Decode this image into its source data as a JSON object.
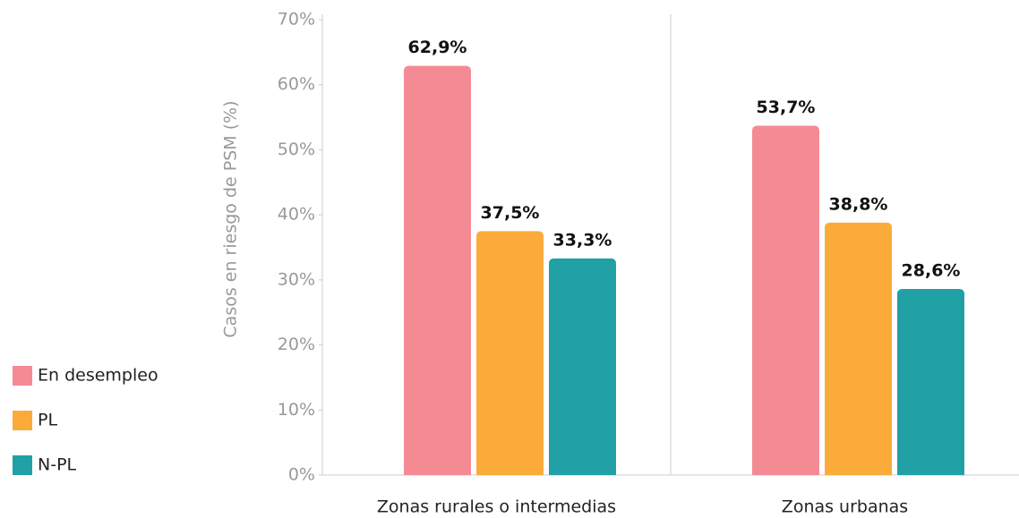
{
  "chart_data": {
    "type": "bar",
    "y_label": "Casos en riesgo de PSM (%)",
    "categories": [
      "Zonas rurales o intermedias",
      "Zonas urbanas"
    ],
    "series": [
      {
        "name": "En desempleo",
        "color": "#f48b94",
        "values": [
          62.9,
          53.7
        ],
        "value_labels": [
          "62,9%",
          "53,7%"
        ]
      },
      {
        "name": "PL",
        "color": "#fbab3a",
        "values": [
          37.5,
          38.8
        ],
        "value_labels": [
          "37,5%",
          "38,8%"
        ]
      },
      {
        "name": "N-PL",
        "color": "#21a0a6",
        "values": [
          33.3,
          28.6
        ],
        "value_labels": [
          "33,3%",
          "28,6%"
        ]
      }
    ],
    "ylim": [
      0,
      70
    ],
    "yticks": [
      {
        "value": 0,
        "label": "0%"
      },
      {
        "value": 10,
        "label": "10%"
      },
      {
        "value": 20,
        "label": "20%"
      },
      {
        "value": 30,
        "label": "30%"
      },
      {
        "value": 40,
        "label": "40%"
      },
      {
        "value": 50,
        "label": "50%"
      },
      {
        "value": 60,
        "label": "60%"
      },
      {
        "value": 70,
        "label": "70%"
      }
    ],
    "legend": "bottom-left"
  }
}
